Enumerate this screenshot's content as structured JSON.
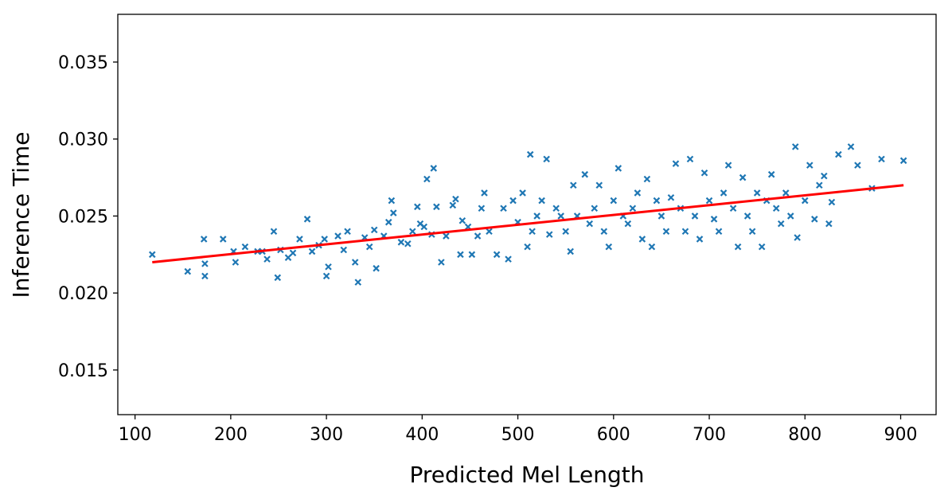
{
  "chart_data": {
    "type": "scatter",
    "xlabel": "Predicted Mel Length",
    "ylabel": "Inference Time",
    "xlim": [
      82,
      937
    ],
    "ylim": [
      0.0121,
      0.0381
    ],
    "xticks": [
      100,
      200,
      300,
      400,
      500,
      600,
      700,
      800,
      900
    ],
    "yticks": [
      0.015,
      {
        "value": 0.02,
        "label": "0.020"
      },
      0.025,
      {
        "value": 0.03,
        "label": "0.030"
      },
      0.035
    ],
    "series": [
      {
        "type": "scatter",
        "marker": "x",
        "color": "#1f77b4",
        "x": [
          118,
          155,
          172,
          173,
          173,
          192,
          203,
          205,
          215,
          228,
          233,
          238,
          245,
          249,
          252,
          260,
          265,
          272,
          280,
          285,
          292,
          298,
          300,
          302,
          312,
          318,
          322,
          330,
          333,
          340,
          345,
          350,
          352,
          360,
          365,
          368,
          370,
          378,
          385,
          390,
          395,
          398,
          402,
          405,
          410,
          412,
          415,
          420,
          425,
          432,
          435,
          440,
          442,
          448,
          452,
          458,
          462,
          465,
          470,
          478,
          485,
          490,
          495,
          500,
          505,
          510,
          513,
          515,
          520,
          525,
          530,
          533,
          540,
          545,
          550,
          555,
          558,
          562,
          570,
          575,
          580,
          585,
          590,
          595,
          600,
          605,
          610,
          615,
          620,
          625,
          630,
          635,
          640,
          645,
          650,
          655,
          660,
          665,
          670,
          675,
          680,
          685,
          690,
          695,
          700,
          705,
          710,
          715,
          720,
          725,
          730,
          735,
          740,
          745,
          750,
          755,
          760,
          765,
          770,
          775,
          780,
          785,
          790,
          792,
          800,
          805,
          810,
          815,
          820,
          825,
          828,
          835,
          848,
          855,
          870,
          880,
          903
        ],
        "values": [
          0.0225,
          0.0214,
          0.0235,
          0.0219,
          0.0211,
          0.0235,
          0.0227,
          0.022,
          0.023,
          0.0227,
          0.0227,
          0.0222,
          0.024,
          0.021,
          0.0228,
          0.0223,
          0.0226,
          0.0235,
          0.0248,
          0.0227,
          0.0231,
          0.0235,
          0.0211,
          0.0217,
          0.0237,
          0.0228,
          0.024,
          0.022,
          0.0207,
          0.0236,
          0.023,
          0.0241,
          0.0216,
          0.0237,
          0.0246,
          0.026,
          0.0252,
          0.0233,
          0.0232,
          0.024,
          0.0256,
          0.0245,
          0.0243,
          0.0274,
          0.0238,
          0.0281,
          0.0256,
          0.022,
          0.0237,
          0.0257,
          0.0261,
          0.0225,
          0.0247,
          0.0243,
          0.0225,
          0.0237,
          0.0255,
          0.0265,
          0.024,
          0.0225,
          0.0255,
          0.0222,
          0.026,
          0.0246,
          0.0265,
          0.023,
          0.029,
          0.024,
          0.025,
          0.026,
          0.0287,
          0.0238,
          0.0255,
          0.025,
          0.024,
          0.0227,
          0.027,
          0.025,
          0.0277,
          0.0245,
          0.0255,
          0.027,
          0.024,
          0.023,
          0.026,
          0.0281,
          0.025,
          0.0245,
          0.0255,
          0.0265,
          0.0235,
          0.0274,
          0.023,
          0.026,
          0.025,
          0.024,
          0.0262,
          0.0284,
          0.0255,
          0.024,
          0.0287,
          0.025,
          0.0235,
          0.0278,
          0.026,
          0.0248,
          0.024,
          0.0265,
          0.0283,
          0.0255,
          0.023,
          0.0275,
          0.025,
          0.024,
          0.0265,
          0.023,
          0.026,
          0.0277,
          0.0255,
          0.0245,
          0.0265,
          0.025,
          0.0295,
          0.0236,
          0.026,
          0.0283,
          0.0248,
          0.027,
          0.0276,
          0.0245,
          0.0259,
          0.029,
          0.0295,
          0.0283,
          0.0268,
          0.0287,
          0.0286
        ]
      },
      {
        "type": "line",
        "color": "#ff0000",
        "x": [
          118,
          903
        ],
        "values": [
          0.022,
          0.027
        ]
      }
    ]
  }
}
